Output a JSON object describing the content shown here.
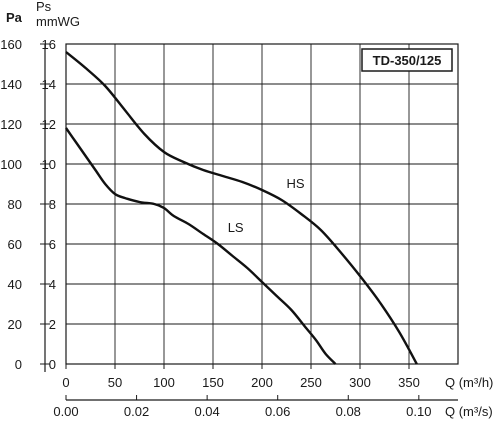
{
  "chart_data": {
    "type": "line",
    "title": "TD-350/125",
    "y_axis_primary": {
      "label": "Pa",
      "ticks": [
        "0",
        "20",
        "40",
        "60",
        "80",
        "100",
        "120",
        "140",
        "160"
      ],
      "range": [
        0,
        160
      ]
    },
    "y_axis_secondary": {
      "label_top": "Ps",
      "label_bottom": "mmWG",
      "ticks": [
        "0",
        "2",
        "4",
        "6",
        "8",
        "10",
        "12",
        "14",
        "16"
      ],
      "range": [
        0,
        16
      ]
    },
    "x_axis_primary": {
      "label": "Q (m³/h)",
      "ticks": [
        "0",
        "50",
        "100",
        "150",
        "200",
        "250",
        "300",
        "350"
      ],
      "range": [
        0,
        400
      ]
    },
    "x_axis_secondary": {
      "label": "Q (m³/s)",
      "ticks": [
        "0.00",
        "0.02",
        "0.04",
        "0.06",
        "0.08",
        "0.10"
      ],
      "range": [
        0,
        0.1111
      ]
    },
    "grid": true,
    "series": [
      {
        "name": "HS",
        "x": [
          0,
          20,
          40,
          60,
          80,
          100,
          120,
          140,
          160,
          180,
          200,
          220,
          240,
          260,
          280,
          300,
          320,
          340,
          358
        ],
        "y": [
          156,
          148,
          139,
          127,
          115,
          106,
          101,
          97,
          94,
          91,
          87,
          82,
          75,
          67,
          56,
          44,
          31,
          16,
          0
        ]
      },
      {
        "name": "LS",
        "x": [
          0,
          10,
          20,
          30,
          40,
          50,
          60,
          75,
          90,
          100,
          110,
          125,
          140,
          155,
          170,
          185,
          200,
          215,
          230,
          245,
          255,
          265,
          275
        ],
        "y": [
          118,
          111,
          104,
          97,
          90,
          85,
          83,
          81,
          80,
          78,
          74,
          70,
          65,
          60,
          54,
          48,
          41,
          34,
          27,
          18,
          12,
          5,
          0
        ]
      }
    ],
    "curve_labels": [
      {
        "text": "HS",
        "x": 225,
        "y": 88
      },
      {
        "text": "LS",
        "x": 165,
        "y": 66
      }
    ]
  }
}
